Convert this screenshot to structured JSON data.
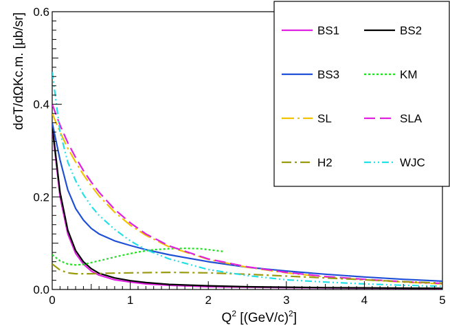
{
  "chart_data": {
    "type": "line",
    "xlabel": "Q",
    "xlabel_sup": "2",
    "xlabel_rest": " [(GeV/c)",
    "xlabel_rest_sup": "2",
    "xlabel_close": "]",
    "ylabel": "dσT/dΩKc.m. [μb/sr]",
    "xlim": [
      0,
      5
    ],
    "ylim": [
      0,
      0.6
    ],
    "x_ticks": [
      "0",
      "1",
      "2",
      "3",
      "4",
      "5"
    ],
    "y_ticks": [
      "0.0",
      "0.2",
      "0.4",
      "0.6"
    ],
    "grid": false,
    "legend_position": "top-right",
    "series": [
      {
        "name": "BS1",
        "color": "#e020e0",
        "dash": "solid",
        "x": [
          0,
          0.1,
          0.2,
          0.3,
          0.4,
          0.5,
          0.6,
          0.8,
          1.0,
          1.2,
          1.5,
          2,
          2.5,
          3,
          3.5,
          4,
          4.5,
          5
        ],
        "y": [
          0.35,
          0.2,
          0.12,
          0.078,
          0.055,
          0.04,
          0.031,
          0.021,
          0.016,
          0.012,
          0.009,
          0.006,
          0.005,
          0.004,
          0.0035,
          0.003,
          0.0025,
          0.002
        ]
      },
      {
        "name": "BS2",
        "color": "#000000",
        "dash": "solid",
        "x": [
          0,
          0.1,
          0.2,
          0.3,
          0.4,
          0.5,
          0.6,
          0.8,
          1.0,
          1.2,
          1.5,
          2,
          2.5,
          3,
          3.5,
          4,
          4.5,
          5
        ],
        "y": [
          0.355,
          0.21,
          0.128,
          0.084,
          0.06,
          0.045,
          0.035,
          0.025,
          0.019,
          0.015,
          0.011,
          0.008,
          0.006,
          0.005,
          0.004,
          0.0035,
          0.003,
          0.0025
        ]
      },
      {
        "name": "BS3",
        "color": "#1f4fd6",
        "dash": "solid",
        "x": [
          0,
          0.1,
          0.2,
          0.3,
          0.4,
          0.5,
          0.6,
          0.8,
          1.0,
          1.2,
          1.5,
          2,
          2.5,
          3,
          3.5,
          4,
          4.5,
          5
        ],
        "y": [
          0.36,
          0.28,
          0.215,
          0.175,
          0.15,
          0.132,
          0.12,
          0.105,
          0.095,
          0.086,
          0.075,
          0.06,
          0.048,
          0.04,
          0.033,
          0.027,
          0.022,
          0.018
        ]
      },
      {
        "name": "KM",
        "color": "#22dd22",
        "dash": "dot",
        "x": [
          0,
          0.1,
          0.2,
          0.3,
          0.4,
          0.5,
          0.7,
          0.9,
          1.1,
          1.3,
          1.5,
          1.7,
          1.9,
          2.1,
          2.2
        ],
        "y": [
          0.075,
          0.062,
          0.055,
          0.053,
          0.054,
          0.058,
          0.066,
          0.074,
          0.081,
          0.086,
          0.088,
          0.089,
          0.088,
          0.084,
          0.082
        ]
      },
      {
        "name": "SL",
        "color": "#f2c200",
        "dash": "longdash",
        "x": [
          0,
          0.1,
          0.2,
          0.3,
          0.4,
          0.5,
          0.6,
          0.8,
          1.0,
          1.2,
          1.5,
          2,
          2.5,
          3,
          3.5,
          4,
          4.5,
          5
        ],
        "y": [
          0.38,
          0.34,
          0.305,
          0.275,
          0.248,
          0.224,
          0.202,
          0.167,
          0.139,
          0.117,
          0.092,
          0.065,
          0.048,
          0.036,
          0.027,
          0.021,
          0.016,
          0.012
        ]
      },
      {
        "name": "SLA",
        "color": "#e020e0",
        "dash": "dash",
        "x": [
          0,
          0.1,
          0.2,
          0.3,
          0.4,
          0.5,
          0.6,
          0.8,
          1.0,
          1.2,
          1.5,
          2,
          2.5,
          3,
          3.5,
          4,
          4.5,
          5
        ],
        "y": [
          0.4,
          0.355,
          0.317,
          0.285,
          0.257,
          0.232,
          0.21,
          0.173,
          0.144,
          0.12,
          0.094,
          0.066,
          0.049,
          0.037,
          0.028,
          0.022,
          0.017,
          0.013
        ]
      },
      {
        "name": "H2",
        "color": "#9a9a10",
        "dash": "dashdot",
        "x": [
          0,
          0.1,
          0.2,
          0.3,
          0.4,
          0.5,
          0.7,
          1.0,
          1.5,
          2,
          2.5,
          3,
          3.5,
          4,
          4.5,
          5
        ],
        "y": [
          0.055,
          0.042,
          0.036,
          0.034,
          0.034,
          0.034,
          0.035,
          0.036,
          0.037,
          0.036,
          0.033,
          0.029,
          0.025,
          0.021,
          0.017,
          0.014
        ]
      },
      {
        "name": "WJC",
        "color": "#22e0e8",
        "dash": "dashdotdot",
        "x": [
          0,
          0.1,
          0.2,
          0.3,
          0.4,
          0.5,
          0.6,
          0.8,
          1.0,
          1.2,
          1.5,
          2,
          2.5,
          3,
          3.5,
          4,
          4.5,
          5
        ],
        "y": [
          0.47,
          0.34,
          0.275,
          0.235,
          0.205,
          0.18,
          0.16,
          0.13,
          0.105,
          0.086,
          0.066,
          0.043,
          0.03,
          0.021,
          0.016,
          0.012,
          0.009,
          0.007
        ]
      }
    ]
  }
}
